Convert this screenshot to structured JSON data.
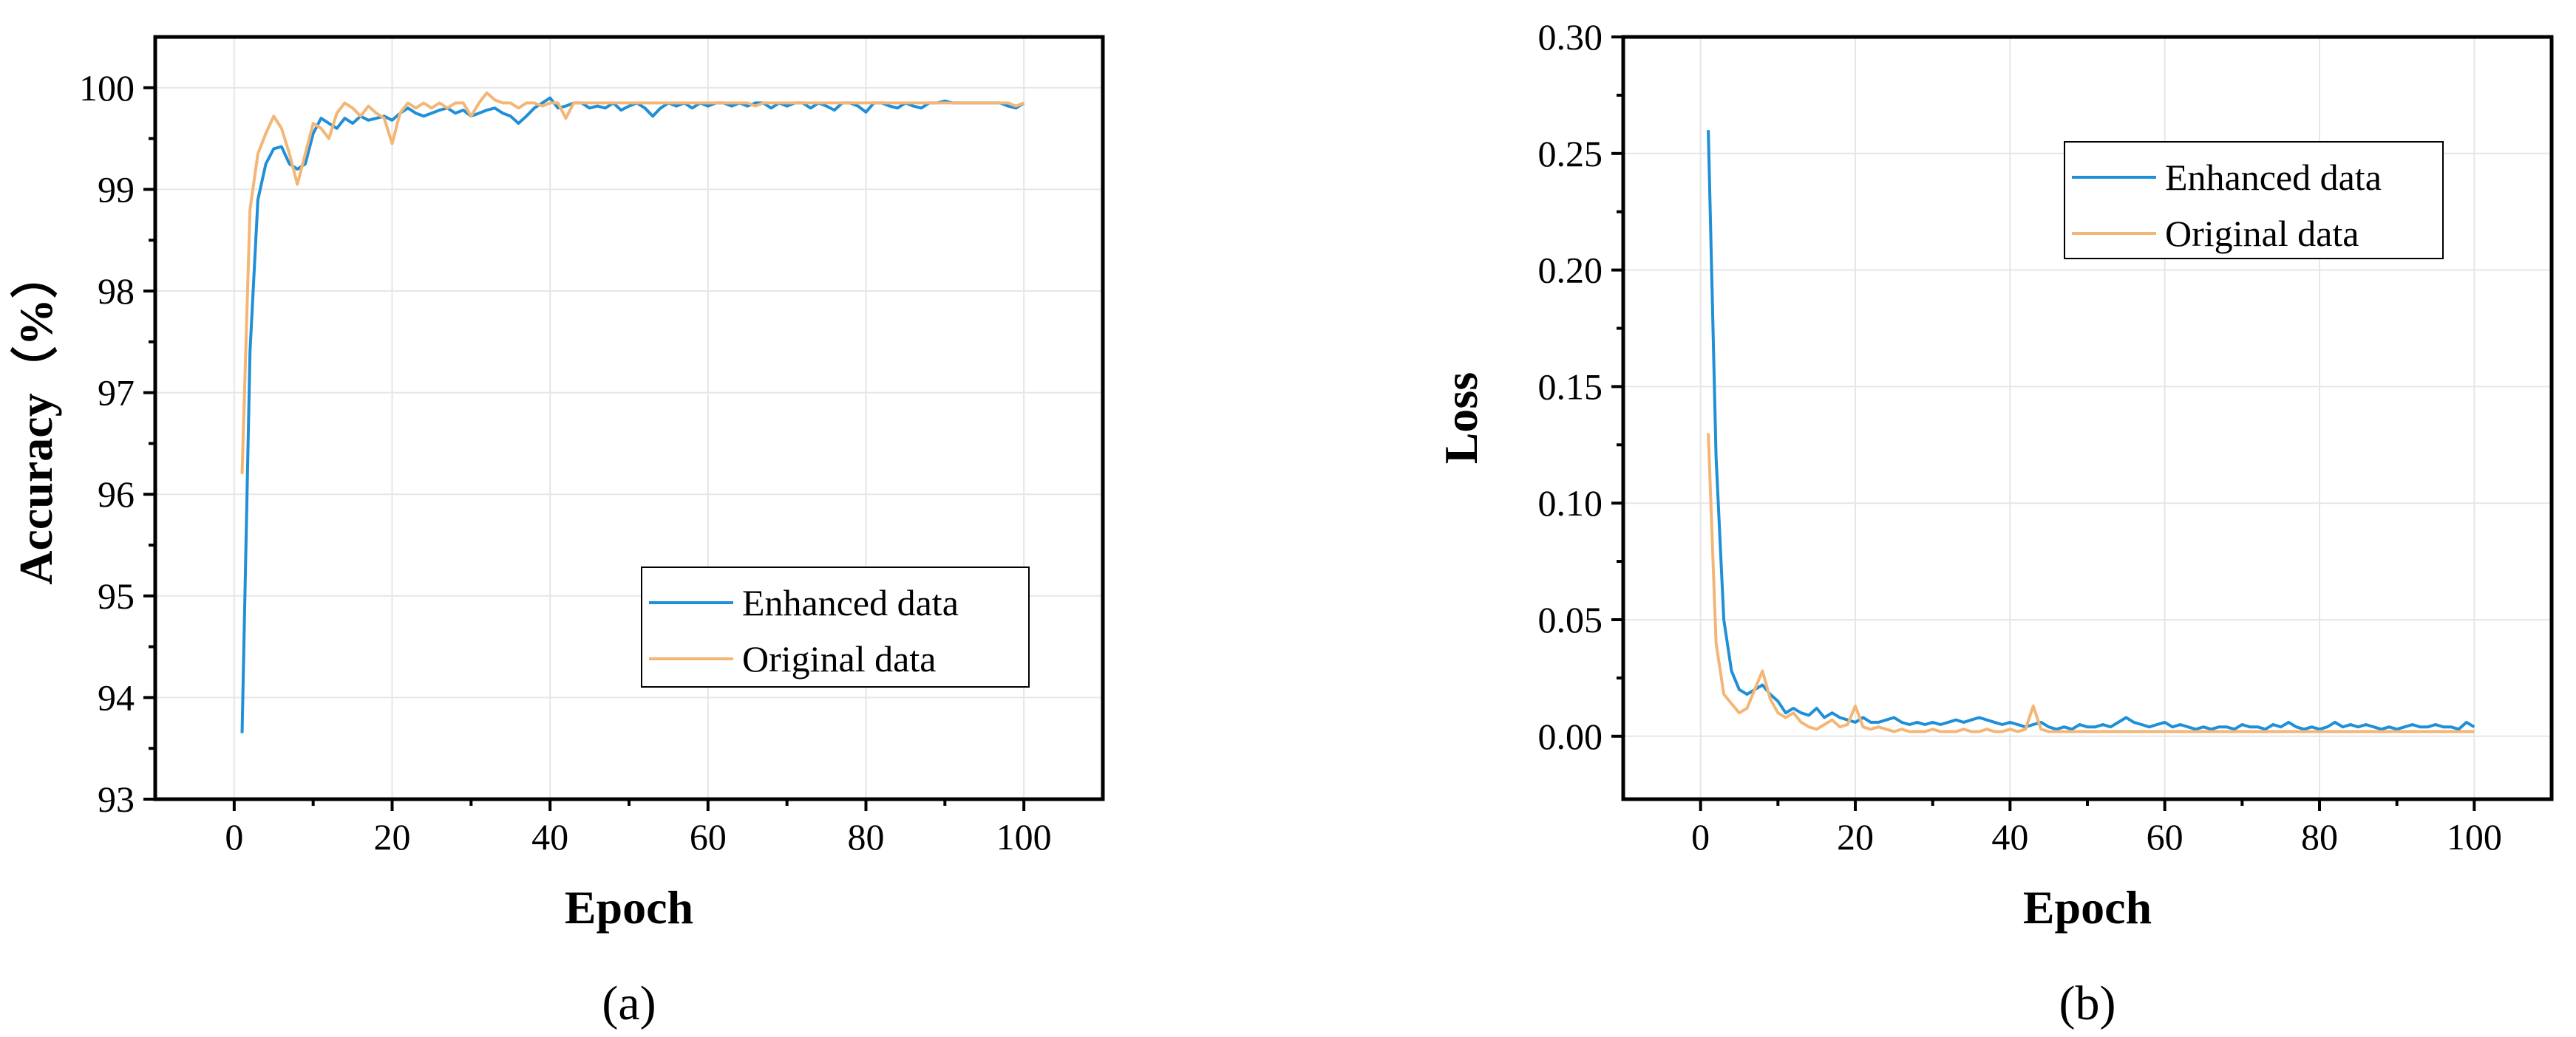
{
  "colors": {
    "enhanced": "#1f8fd8",
    "original": "#f3b676",
    "grid": "#e6e6e6",
    "axis": "#000000"
  },
  "chart_data": [
    {
      "id": "a",
      "panel_label": "(a)",
      "type": "line",
      "xlabel": "Epoch",
      "ylabel": "Accuracy（%）",
      "xlim": [
        -10,
        110
      ],
      "ylim": [
        93,
        100.5
      ],
      "xticks": [
        0,
        20,
        40,
        60,
        80,
        100
      ],
      "yticks": [
        93,
        94,
        95,
        96,
        97,
        98,
        99,
        100
      ],
      "xtick_labels": [
        "0",
        "20",
        "40",
        "60",
        "80",
        "100"
      ],
      "ytick_labels": [
        "93",
        "94",
        "95",
        "96",
        "97",
        "98",
        "99",
        "100"
      ],
      "grid": true,
      "legend": "lower-right",
      "series": [
        {
          "name": "Enhanced data",
          "color": "#1f8fd8",
          "x": [
            1,
            2,
            3,
            4,
            5,
            6,
            7,
            8,
            9,
            10,
            11,
            12,
            13,
            14,
            15,
            16,
            17,
            18,
            19,
            20,
            21,
            22,
            23,
            24,
            25,
            26,
            27,
            28,
            29,
            30,
            31,
            32,
            33,
            34,
            35,
            36,
            37,
            38,
            39,
            40,
            41,
            42,
            43,
            44,
            45,
            46,
            47,
            48,
            49,
            50,
            51,
            52,
            53,
            54,
            55,
            56,
            57,
            58,
            59,
            60,
            61,
            62,
            63,
            64,
            65,
            66,
            67,
            68,
            69,
            70,
            71,
            72,
            73,
            74,
            75,
            76,
            77,
            78,
            79,
            80,
            81,
            82,
            83,
            84,
            85,
            86,
            87,
            88,
            89,
            90,
            91,
            92,
            93,
            94,
            95,
            96,
            97,
            98,
            99,
            100
          ],
          "y": [
            93.65,
            97.4,
            98.9,
            99.25,
            99.4,
            99.42,
            99.25,
            99.2,
            99.25,
            99.55,
            99.7,
            99.65,
            99.6,
            99.7,
            99.65,
            99.72,
            99.68,
            99.7,
            99.72,
            99.68,
            99.75,
            99.8,
            99.75,
            99.72,
            99.75,
            99.78,
            99.8,
            99.75,
            99.78,
            99.72,
            99.75,
            99.78,
            99.8,
            99.75,
            99.72,
            99.65,
            99.72,
            99.8,
            99.85,
            99.9,
            99.8,
            99.82,
            99.85,
            99.85,
            99.8,
            99.82,
            99.8,
            99.85,
            99.78,
            99.82,
            99.85,
            99.8,
            99.72,
            99.8,
            99.85,
            99.82,
            99.85,
            99.8,
            99.85,
            99.82,
            99.85,
            99.85,
            99.82,
            99.85,
            99.82,
            99.85,
            99.85,
            99.8,
            99.85,
            99.82,
            99.85,
            99.85,
            99.8,
            99.85,
            99.82,
            99.78,
            99.85,
            99.85,
            99.82,
            99.76,
            99.85,
            99.85,
            99.82,
            99.8,
            99.85,
            99.82,
            99.8,
            99.85,
            99.85,
            99.87,
            99.85,
            99.85,
            99.85,
            99.85,
            99.85,
            99.85,
            99.85,
            99.82,
            99.8,
            99.85
          ]
        },
        {
          "name": "Original data",
          "color": "#f3b676",
          "x": [
            1,
            2,
            3,
            4,
            5,
            6,
            7,
            8,
            9,
            10,
            11,
            12,
            13,
            14,
            15,
            16,
            17,
            18,
            19,
            20,
            21,
            22,
            23,
            24,
            25,
            26,
            27,
            28,
            29,
            30,
            31,
            32,
            33,
            34,
            35,
            36,
            37,
            38,
            39,
            40,
            41,
            42,
            43,
            44,
            45,
            46,
            47,
            48,
            49,
            50,
            51,
            52,
            53,
            54,
            55,
            56,
            57,
            58,
            59,
            60,
            61,
            62,
            63,
            64,
            65,
            66,
            67,
            68,
            69,
            70,
            71,
            72,
            73,
            74,
            75,
            76,
            77,
            78,
            79,
            80,
            81,
            82,
            83,
            84,
            85,
            86,
            87,
            88,
            89,
            90,
            91,
            92,
            93,
            94,
            95,
            96,
            97,
            98,
            99,
            100
          ],
          "y": [
            96.2,
            98.8,
            99.35,
            99.55,
            99.72,
            99.6,
            99.35,
            99.05,
            99.35,
            99.65,
            99.6,
            99.5,
            99.75,
            99.85,
            99.8,
            99.72,
            99.82,
            99.75,
            99.7,
            99.45,
            99.75,
            99.85,
            99.8,
            99.85,
            99.8,
            99.85,
            99.8,
            99.85,
            99.85,
            99.72,
            99.85,
            99.95,
            99.88,
            99.85,
            99.85,
            99.8,
            99.85,
            99.85,
            99.82,
            99.85,
            99.85,
            99.7,
            99.85,
            99.85,
            99.85,
            99.85,
            99.85,
            99.85,
            99.85,
            99.85,
            99.85,
            99.85,
            99.85,
            99.85,
            99.85,
            99.85,
            99.85,
            99.85,
            99.85,
            99.85,
            99.85,
            99.85,
            99.85,
            99.85,
            99.85,
            99.82,
            99.85,
            99.85,
            99.85,
            99.85,
            99.85,
            99.85,
            99.85,
            99.85,
            99.85,
            99.85,
            99.85,
            99.85,
            99.85,
            99.85,
            99.85,
            99.85,
            99.85,
            99.85,
            99.85,
            99.85,
            99.85,
            99.85,
            99.85,
            99.85,
            99.85,
            99.85,
            99.85,
            99.85,
            99.85,
            99.85,
            99.85,
            99.85,
            99.82,
            99.85
          ]
        }
      ]
    },
    {
      "id": "b",
      "panel_label": "(b)",
      "type": "line",
      "xlabel": "Epoch",
      "ylabel": "Loss",
      "xlim": [
        -10,
        110
      ],
      "ylim": [
        -0.027,
        0.3
      ],
      "xticks": [
        0,
        20,
        40,
        60,
        80,
        100
      ],
      "yticks": [
        0,
        0.05,
        0.1,
        0.15,
        0.2,
        0.25,
        0.3
      ],
      "xtick_labels": [
        "0",
        "20",
        "40",
        "60",
        "80",
        "100"
      ],
      "ytick_labels": [
        "0.00",
        "0.05",
        "0.10",
        "0.15",
        "0.20",
        "0.25",
        "0.30"
      ],
      "grid": true,
      "legend": "top-right",
      "series": [
        {
          "name": "Enhanced data",
          "color": "#1f8fd8",
          "x": [
            1,
            2,
            3,
            4,
            5,
            6,
            7,
            8,
            9,
            10,
            11,
            12,
            13,
            14,
            15,
            16,
            17,
            18,
            19,
            20,
            21,
            22,
            23,
            24,
            25,
            26,
            27,
            28,
            29,
            30,
            31,
            32,
            33,
            34,
            35,
            36,
            37,
            38,
            39,
            40,
            41,
            42,
            43,
            44,
            45,
            46,
            47,
            48,
            49,
            50,
            51,
            52,
            53,
            54,
            55,
            56,
            57,
            58,
            59,
            60,
            61,
            62,
            63,
            64,
            65,
            66,
            67,
            68,
            69,
            70,
            71,
            72,
            73,
            74,
            75,
            76,
            77,
            78,
            79,
            80,
            81,
            82,
            83,
            84,
            85,
            86,
            87,
            88,
            89,
            90,
            91,
            92,
            93,
            94,
            95,
            96,
            97,
            98,
            99,
            100
          ],
          "y": [
            0.26,
            0.12,
            0.05,
            0.028,
            0.02,
            0.018,
            0.02,
            0.022,
            0.018,
            0.015,
            0.01,
            0.012,
            0.01,
            0.009,
            0.012,
            0.008,
            0.01,
            0.008,
            0.007,
            0.006,
            0.008,
            0.006,
            0.006,
            0.007,
            0.008,
            0.006,
            0.005,
            0.006,
            0.005,
            0.006,
            0.005,
            0.006,
            0.007,
            0.006,
            0.007,
            0.008,
            0.007,
            0.006,
            0.005,
            0.006,
            0.005,
            0.004,
            0.005,
            0.006,
            0.004,
            0.003,
            0.004,
            0.003,
            0.005,
            0.004,
            0.004,
            0.005,
            0.004,
            0.006,
            0.008,
            0.006,
            0.005,
            0.004,
            0.005,
            0.006,
            0.004,
            0.005,
            0.004,
            0.003,
            0.004,
            0.003,
            0.004,
            0.004,
            0.003,
            0.005,
            0.004,
            0.004,
            0.003,
            0.005,
            0.004,
            0.006,
            0.004,
            0.003,
            0.004,
            0.003,
            0.004,
            0.006,
            0.004,
            0.005,
            0.004,
            0.005,
            0.004,
            0.003,
            0.004,
            0.003,
            0.004,
            0.005,
            0.004,
            0.004,
            0.005,
            0.004,
            0.004,
            0.003,
            0.006,
            0.004
          ]
        },
        {
          "name": "Original data",
          "color": "#f3b676",
          "x": [
            1,
            2,
            3,
            4,
            5,
            6,
            7,
            8,
            9,
            10,
            11,
            12,
            13,
            14,
            15,
            16,
            17,
            18,
            19,
            20,
            21,
            22,
            23,
            24,
            25,
            26,
            27,
            28,
            29,
            30,
            31,
            32,
            33,
            34,
            35,
            36,
            37,
            38,
            39,
            40,
            41,
            42,
            43,
            44,
            45,
            46,
            47,
            48,
            49,
            50,
            51,
            52,
            53,
            54,
            55,
            56,
            57,
            58,
            59,
            60,
            61,
            62,
            63,
            64,
            65,
            66,
            67,
            68,
            69,
            70,
            71,
            72,
            73,
            74,
            75,
            76,
            77,
            78,
            79,
            80,
            81,
            82,
            83,
            84,
            85,
            86,
            87,
            88,
            89,
            90,
            91,
            92,
            93,
            94,
            95,
            96,
            97,
            98,
            99,
            100
          ],
          "y": [
            0.13,
            0.04,
            0.018,
            0.014,
            0.01,
            0.012,
            0.02,
            0.028,
            0.016,
            0.01,
            0.008,
            0.01,
            0.006,
            0.004,
            0.003,
            0.005,
            0.007,
            0.004,
            0.005,
            0.013,
            0.004,
            0.003,
            0.004,
            0.003,
            0.002,
            0.003,
            0.002,
            0.002,
            0.002,
            0.003,
            0.002,
            0.002,
            0.002,
            0.003,
            0.002,
            0.002,
            0.003,
            0.002,
            0.002,
            0.003,
            0.002,
            0.003,
            0.013,
            0.003,
            0.002,
            0.002,
            0.002,
            0.002,
            0.002,
            0.002,
            0.002,
            0.002,
            0.002,
            0.002,
            0.002,
            0.002,
            0.002,
            0.002,
            0.002,
            0.002,
            0.002,
            0.002,
            0.002,
            0.002,
            0.002,
            0.002,
            0.002,
            0.002,
            0.002,
            0.002,
            0.002,
            0.002,
            0.002,
            0.002,
            0.002,
            0.002,
            0.002,
            0.002,
            0.002,
            0.002,
            0.002,
            0.002,
            0.002,
            0.002,
            0.002,
            0.002,
            0.002,
            0.002,
            0.002,
            0.002,
            0.002,
            0.002,
            0.002,
            0.002,
            0.002,
            0.002,
            0.002,
            0.002,
            0.002,
            0.002
          ]
        }
      ]
    }
  ]
}
